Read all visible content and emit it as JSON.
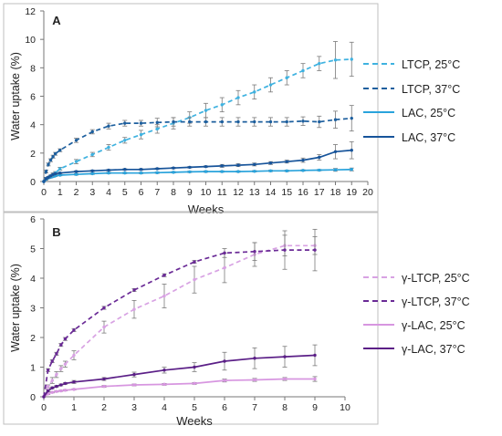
{
  "chart_data": [
    {
      "type": "line",
      "panel_label": "A",
      "xlabel": "Weeks",
      "ylabel": "Water uptake (%)",
      "xlim": [
        0,
        20
      ],
      "ylim": [
        0,
        12
      ],
      "xticks": [
        0,
        1,
        2,
        3,
        4,
        5,
        6,
        7,
        8,
        9,
        10,
        11,
        12,
        13,
        14,
        15,
        16,
        17,
        18,
        19,
        20
      ],
      "yticks": [
        0,
        2,
        4,
        6,
        8,
        10,
        12
      ],
      "grid": false,
      "legend_position": "right",
      "series": [
        {
          "name": "LTCP, 25°C",
          "color": "#3fb2e0",
          "dash": true,
          "x": [
            0,
            0.14,
            0.28,
            0.42,
            0.57,
            0.71,
            1,
            2,
            3,
            4,
            5,
            6,
            7,
            8,
            9,
            10,
            11,
            12,
            13,
            14,
            15,
            16,
            17,
            18,
            19
          ],
          "y": [
            0,
            0.2,
            0.3,
            0.4,
            0.5,
            0.6,
            0.9,
            1.4,
            1.9,
            2.4,
            2.9,
            3.3,
            3.7,
            4.1,
            4.5,
            5.0,
            5.4,
            5.9,
            6.3,
            6.8,
            7.3,
            7.8,
            8.3,
            8.55,
            8.6
          ],
          "err": [
            0,
            0.05,
            0.05,
            0.05,
            0.1,
            0.1,
            0.1,
            0.15,
            0.15,
            0.2,
            0.2,
            0.3,
            0.3,
            0.4,
            0.4,
            0.5,
            0.5,
            0.5,
            0.5,
            0.5,
            0.5,
            0.5,
            0.5,
            1.3,
            1.2
          ]
        },
        {
          "name": "LTCP, 37°C",
          "color": "#1d5f9e",
          "dash": true,
          "x": [
            0,
            0.14,
            0.28,
            0.42,
            0.57,
            0.71,
            1,
            2,
            3,
            4,
            5,
            6,
            7,
            8,
            9,
            10,
            11,
            12,
            13,
            14,
            15,
            16,
            17,
            18,
            19
          ],
          "y": [
            0,
            0.7,
            1.2,
            1.5,
            1.75,
            1.95,
            2.2,
            2.9,
            3.5,
            3.9,
            4.1,
            4.1,
            4.15,
            4.2,
            4.2,
            4.2,
            4.2,
            4.2,
            4.2,
            4.2,
            4.2,
            4.25,
            4.2,
            4.35,
            4.45
          ],
          "err": [
            0,
            0.1,
            0.1,
            0.1,
            0.1,
            0.1,
            0.1,
            0.15,
            0.15,
            0.2,
            0.2,
            0.2,
            0.3,
            0.3,
            0.3,
            0.3,
            0.3,
            0.3,
            0.3,
            0.3,
            0.3,
            0.3,
            0.4,
            0.6,
            0.9
          ]
        },
        {
          "name": "LAC, 25°C",
          "color": "#29a3dc",
          "dash": false,
          "x": [
            0,
            0.14,
            0.28,
            0.42,
            0.57,
            0.71,
            1,
            2,
            3,
            4,
            5,
            6,
            7,
            8,
            9,
            10,
            11,
            12,
            13,
            14,
            15,
            16,
            17,
            18,
            19
          ],
          "y": [
            0,
            0.15,
            0.25,
            0.3,
            0.35,
            0.4,
            0.45,
            0.5,
            0.55,
            0.6,
            0.6,
            0.6,
            0.62,
            0.65,
            0.68,
            0.7,
            0.7,
            0.7,
            0.72,
            0.75,
            0.75,
            0.78,
            0.8,
            0.82,
            0.85
          ],
          "err": [
            0,
            0.05,
            0.05,
            0.05,
            0.05,
            0.05,
            0.05,
            0.05,
            0.05,
            0.05,
            0.05,
            0.05,
            0.05,
            0.05,
            0.05,
            0.05,
            0.05,
            0.05,
            0.05,
            0.05,
            0.05,
            0.05,
            0.05,
            0.1,
            0.1
          ]
        },
        {
          "name": "LAC, 37°C",
          "color": "#17549a",
          "dash": false,
          "x": [
            0,
            0.14,
            0.28,
            0.42,
            0.57,
            0.71,
            1,
            2,
            3,
            4,
            5,
            6,
            7,
            8,
            9,
            10,
            11,
            12,
            13,
            14,
            15,
            16,
            17,
            18,
            19
          ],
          "y": [
            0,
            0.2,
            0.3,
            0.4,
            0.5,
            0.55,
            0.6,
            0.7,
            0.75,
            0.8,
            0.85,
            0.85,
            0.9,
            0.95,
            1.0,
            1.05,
            1.1,
            1.15,
            1.2,
            1.3,
            1.4,
            1.5,
            1.7,
            2.1,
            2.2
          ],
          "err": [
            0,
            0.05,
            0.05,
            0.05,
            0.05,
            0.05,
            0.05,
            0.05,
            0.05,
            0.05,
            0.05,
            0.05,
            0.05,
            0.05,
            0.05,
            0.05,
            0.1,
            0.1,
            0.1,
            0.1,
            0.1,
            0.15,
            0.2,
            0.5,
            0.6
          ]
        }
      ]
    },
    {
      "type": "line",
      "panel_label": "B",
      "xlabel": "Weeks",
      "ylabel": "Water uptake (%)",
      "xlim": [
        0,
        10
      ],
      "ylim": [
        0,
        6
      ],
      "xticks": [
        0,
        1,
        2,
        3,
        4,
        5,
        6,
        7,
        8,
        9,
        10
      ],
      "yticks": [
        0,
        1,
        2,
        3,
        4,
        5,
        6
      ],
      "grid": false,
      "legend_position": "right",
      "series": [
        {
          "name": "γ-LTCP, 25°C",
          "color": "#d8a2e3",
          "dash": true,
          "x": [
            0,
            0.14,
            0.28,
            0.42,
            0.57,
            0.71,
            1,
            2,
            3,
            4,
            5,
            6,
            7,
            8,
            9
          ],
          "y": [
            0,
            0.35,
            0.55,
            0.75,
            0.95,
            1.1,
            1.4,
            2.35,
            2.95,
            3.4,
            3.95,
            4.35,
            4.8,
            5.1,
            5.1
          ],
          "err": [
            0,
            0.05,
            0.1,
            0.1,
            0.1,
            0.1,
            0.15,
            0.2,
            0.3,
            0.4,
            0.45,
            0.5,
            0.4,
            0.35,
            0.3
          ]
        },
        {
          "name": "γ-LTCP, 37°C",
          "color": "#6a2a96",
          "dash": true,
          "x": [
            0,
            0.14,
            0.28,
            0.42,
            0.57,
            0.71,
            1,
            2,
            3,
            4,
            5,
            6,
            7,
            8,
            9
          ],
          "y": [
            0,
            0.9,
            1.2,
            1.45,
            1.75,
            1.95,
            2.25,
            3.0,
            3.6,
            4.1,
            4.55,
            4.85,
            4.9,
            4.95,
            4.95
          ],
          "err": [
            0,
            0.05,
            0.05,
            0.05,
            0.05,
            0.05,
            0.05,
            0.05,
            0.05,
            0.05,
            0.05,
            0.15,
            0.3,
            0.65,
            0.7
          ]
        },
        {
          "name": "γ-LAC, 25°C",
          "color": "#d796e0",
          "dash": false,
          "x": [
            0,
            0.14,
            0.28,
            0.42,
            0.57,
            0.71,
            1,
            2,
            3,
            4,
            5,
            6,
            7,
            8,
            9
          ],
          "y": [
            0,
            0.1,
            0.15,
            0.18,
            0.2,
            0.22,
            0.25,
            0.35,
            0.4,
            0.42,
            0.45,
            0.55,
            0.57,
            0.6,
            0.6
          ],
          "err": [
            0,
            0.02,
            0.02,
            0.02,
            0.02,
            0.02,
            0.02,
            0.03,
            0.03,
            0.03,
            0.03,
            0.05,
            0.05,
            0.05,
            0.08
          ]
        },
        {
          "name": "γ-LAC, 37°C",
          "color": "#5b1f87",
          "dash": false,
          "x": [
            0,
            0.14,
            0.28,
            0.42,
            0.57,
            0.71,
            1,
            2,
            3,
            4,
            5,
            6,
            7,
            8,
            9
          ],
          "y": [
            0,
            0.2,
            0.3,
            0.35,
            0.4,
            0.45,
            0.5,
            0.6,
            0.75,
            0.9,
            1.0,
            1.2,
            1.3,
            1.35,
            1.4
          ],
          "err": [
            0,
            0.03,
            0.03,
            0.03,
            0.03,
            0.03,
            0.05,
            0.05,
            0.08,
            0.1,
            0.15,
            0.3,
            0.35,
            0.35,
            0.35
          ]
        }
      ]
    }
  ]
}
